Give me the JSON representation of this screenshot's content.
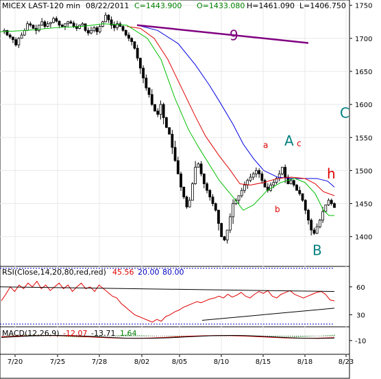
{
  "header": {
    "symbol": "MICEX LAST-120 min",
    "date": "08/22/2011",
    "close": "C=1443.900",
    "open": "O=1433.080",
    "high": "H=1461.090",
    "low": "L=1406.750"
  },
  "rsi_label": {
    "name": "RSI(Close,14,20,80,red,red)",
    "value": "45.56",
    "lower": "20.00",
    "upper": "80.00"
  },
  "macd_label": {
    "name": "MACD(12,26,9)",
    "macd": "-12.07",
    "signal": "-13.71",
    "hist": "1.64"
  },
  "colors": {
    "candles": "#000000",
    "ma_green": "#00c000",
    "ma_red": "#e00000",
    "ma_blue": "#0000e0",
    "trendline": "#800080",
    "rsi": "#e00000",
    "wave_teal": "#008080",
    "wave_red": "#e00000",
    "wave_purple": "#800080"
  },
  "chart_data": [
    {
      "type": "candlestick",
      "x_tick_labels": [
        "7/20",
        "7/25",
        "7/28",
        "8/02",
        "8/05",
        "8/10",
        "8/15",
        "8/18",
        "8/23"
      ],
      "y_tick_labels": [
        "1400",
        "1450",
        "1500",
        "1550",
        "1600",
        "1650",
        "1700",
        "1750"
      ],
      "ylim": [
        1355,
        1758
      ],
      "close_path": [
        1710,
        1712,
        1705,
        1702,
        1698,
        1690,
        1700,
        1705,
        1712,
        1722,
        1720,
        1715,
        1712,
        1720,
        1725,
        1718,
        1722,
        1724,
        1730,
        1726,
        1720,
        1718,
        1722,
        1725,
        1723,
        1718,
        1715,
        1720,
        1722,
        1712,
        1708,
        1712,
        1716,
        1710,
        1718,
        1725,
        1735,
        1728,
        1720,
        1716,
        1722,
        1718,
        1712,
        1705,
        1700,
        1695,
        1685,
        1670,
        1655,
        1640,
        1625,
        1615,
        1600,
        1590,
        1585,
        1600,
        1580,
        1565,
        1555,
        1535,
        1515,
        1495,
        1475,
        1460,
        1445,
        1455,
        1480,
        1505,
        1510,
        1495,
        1480,
        1470,
        1460,
        1450,
        1440,
        1420,
        1400,
        1395,
        1410,
        1430,
        1450,
        1455,
        1462,
        1470,
        1478,
        1485,
        1490,
        1495,
        1500,
        1495,
        1485,
        1475,
        1470,
        1478,
        1482,
        1488,
        1495,
        1505,
        1490,
        1480,
        1485,
        1478,
        1470,
        1465,
        1455,
        1440,
        1425,
        1410,
        1405,
        1415,
        1425,
        1438,
        1448,
        1455,
        1450,
        1444
      ],
      "ma_green": [
        [
          0,
          1710
        ],
        [
          40,
          1712
        ],
        [
          80,
          1716
        ],
        [
          120,
          1718
        ],
        [
          150,
          1722
        ],
        [
          185,
          1720
        ],
        [
          215,
          1700
        ],
        [
          235,
          1668
        ],
        [
          255,
          1610
        ],
        [
          275,
          1562
        ],
        [
          290,
          1535
        ],
        [
          305,
          1510
        ],
        [
          320,
          1485
        ],
        [
          340,
          1460
        ],
        [
          355,
          1440
        ],
        [
          370,
          1448
        ],
        [
          390,
          1470
        ],
        [
          410,
          1482
        ],
        [
          430,
          1488
        ],
        [
          445,
          1482
        ],
        [
          460,
          1465
        ],
        [
          472,
          1440
        ],
        [
          480,
          1432
        ],
        [
          488,
          1432
        ]
      ],
      "ma_red": [
        [
          185,
          1718
        ],
        [
          205,
          1715
        ],
        [
          225,
          1700
        ],
        [
          245,
          1668
        ],
        [
          265,
          1625
        ],
        [
          285,
          1582
        ],
        [
          300,
          1552
        ],
        [
          320,
          1522
        ],
        [
          335,
          1502
        ],
        [
          350,
          1480
        ],
        [
          365,
          1478
        ],
        [
          385,
          1482
        ],
        [
          405,
          1488
        ],
        [
          425,
          1490
        ],
        [
          445,
          1488
        ],
        [
          460,
          1480
        ],
        [
          472,
          1468
        ],
        [
          488,
          1462
        ]
      ],
      "ma_blue": [
        [
          200,
          1720
        ],
        [
          230,
          1712
        ],
        [
          260,
          1692
        ],
        [
          285,
          1660
        ],
        [
          305,
          1630
        ],
        [
          320,
          1605
        ],
        [
          340,
          1570
        ],
        [
          355,
          1540
        ],
        [
          370,
          1518
        ],
        [
          385,
          1500
        ],
        [
          405,
          1490
        ],
        [
          425,
          1488
        ],
        [
          445,
          1488
        ],
        [
          462,
          1488
        ],
        [
          478,
          1484
        ],
        [
          488,
          1475
        ]
      ],
      "trendline": [
        [
          200,
          1720
        ],
        [
          450,
          1693
        ]
      ],
      "wave_labels": [
        {
          "text": "9",
          "x": 335,
          "y": 1697,
          "color": "purple"
        },
        {
          "text": "a",
          "x": 384,
          "y": 1534,
          "color": "red"
        },
        {
          "text": "A",
          "x": 415,
          "y": 1538,
          "color": "teal"
        },
        {
          "text": "c",
          "x": 433,
          "y": 1537,
          "color": "red"
        },
        {
          "text": "C",
          "x": 496,
          "y": 1580,
          "color": "teal"
        },
        {
          "text": "h",
          "x": 477,
          "y": 1488,
          "color": "red"
        },
        {
          "text": "b",
          "x": 401,
          "y": 1437,
          "color": "red"
        },
        {
          "text": "B",
          "x": 456,
          "y": 1372,
          "color": "teal"
        }
      ]
    },
    {
      "type": "line",
      "title": "RSI(Close,14,20,80,red,red)",
      "y_tick_labels": [
        "30",
        "60"
      ],
      "ylim": [
        17,
        82
      ],
      "lower": 20,
      "upper": 80,
      "series_path": [
        45,
        52,
        60,
        55,
        62,
        58,
        64,
        60,
        66,
        58,
        62,
        56,
        60,
        64,
        58,
        62,
        55,
        60,
        64,
        58,
        60,
        55,
        62,
        58,
        54,
        50,
        48,
        42,
        38,
        34,
        30,
        28,
        26,
        24,
        22,
        25,
        23,
        28,
        30,
        33,
        35,
        38,
        40,
        42,
        44,
        43,
        45,
        47,
        48,
        50,
        48,
        52,
        49,
        51,
        54,
        50,
        48,
        52,
        55,
        53,
        56,
        50,
        48,
        52,
        54,
        56,
        52,
        50,
        48,
        50,
        52,
        54,
        55,
        52,
        46,
        45
      ],
      "trend_upper": [
        [
          0,
          60
        ],
        [
          488,
          55
        ]
      ],
      "trend_lower": [
        [
          295,
          24
        ],
        [
          488,
          37
        ]
      ]
    },
    {
      "type": "bar",
      "title": "MACD(12,26,9)",
      "y_tick_labels": [
        "-10"
      ],
      "ylim": [
        -40,
        20
      ]
    }
  ]
}
